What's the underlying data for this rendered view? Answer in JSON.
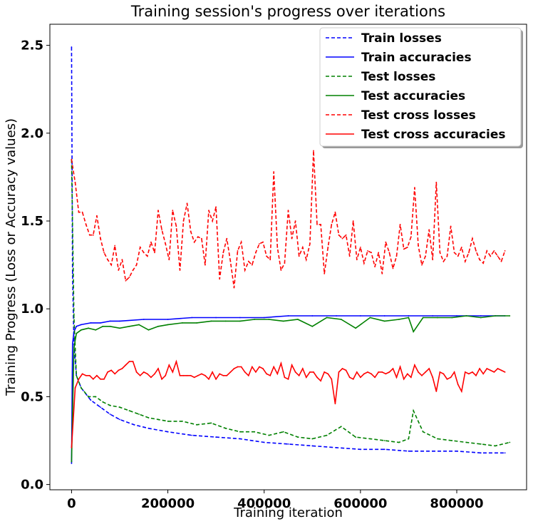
{
  "chart_data": {
    "type": "line",
    "title": "Training session's progress over iterations",
    "xlabel": "Training iteration",
    "ylabel": "Training Progress (Loss or Accuracy values)",
    "xlim": [
      -45000,
      945000
    ],
    "ylim": [
      -0.03,
      2.62
    ],
    "x_ticks": [
      0,
      200000,
      400000,
      600000,
      800000
    ],
    "y_ticks": [
      0.0,
      0.5,
      1.0,
      1.5,
      2.0,
      2.5
    ],
    "x_tick_labels": [
      "0",
      "200000",
      "400000",
      "600000",
      "800000"
    ],
    "y_tick_labels": [
      "0.0",
      "0.5",
      "1.0",
      "1.5",
      "2.0",
      "2.5"
    ],
    "grid": false,
    "legend_position": "top-right",
    "series": [
      {
        "name": "Train losses",
        "color": "#0000ff",
        "style": "dashed",
        "x": [
          0,
          2000,
          5000,
          10000,
          20000,
          40000,
          60000,
          80000,
          100000,
          130000,
          160000,
          200000,
          250000,
          300000,
          350000,
          400000,
          450000,
          500000,
          550000,
          600000,
          650000,
          700000,
          750000,
          800000,
          850000,
          900000
        ],
        "values": [
          2.49,
          1.2,
          0.8,
          0.62,
          0.55,
          0.48,
          0.44,
          0.4,
          0.37,
          0.34,
          0.32,
          0.3,
          0.28,
          0.27,
          0.26,
          0.24,
          0.23,
          0.22,
          0.21,
          0.2,
          0.2,
          0.19,
          0.19,
          0.19,
          0.18,
          0.18
        ]
      },
      {
        "name": "Train accuracies",
        "color": "#0000ff",
        "style": "solid",
        "x": [
          0,
          2000,
          5000,
          10000,
          20000,
          40000,
          60000,
          80000,
          100000,
          150000,
          200000,
          250000,
          300000,
          350000,
          400000,
          450000,
          500000,
          550000,
          600000,
          650000,
          700000,
          750000,
          800000,
          850000,
          900000
        ],
        "values": [
          0.12,
          0.8,
          0.87,
          0.9,
          0.91,
          0.92,
          0.92,
          0.93,
          0.93,
          0.94,
          0.94,
          0.95,
          0.95,
          0.95,
          0.95,
          0.96,
          0.96,
          0.96,
          0.96,
          0.96,
          0.96,
          0.96,
          0.96,
          0.96,
          0.96
        ]
      },
      {
        "name": "Test losses",
        "color": "#008000",
        "style": "dashed",
        "x": [
          0,
          5000,
          10000,
          20000,
          35000,
          50000,
          65000,
          80000,
          100000,
          120000,
          140000,
          160000,
          180000,
          200000,
          230000,
          260000,
          290000,
          320000,
          350000,
          380000,
          410000,
          440000,
          470000,
          500000,
          530000,
          560000,
          590000,
          620000,
          650000,
          680000,
          700000,
          710000,
          730000,
          760000,
          790000,
          820000,
          850000,
          880000,
          910000
        ],
        "values": [
          1.85,
          0.95,
          0.62,
          0.55,
          0.5,
          0.5,
          0.47,
          0.45,
          0.44,
          0.42,
          0.4,
          0.38,
          0.37,
          0.36,
          0.36,
          0.34,
          0.35,
          0.32,
          0.3,
          0.3,
          0.28,
          0.3,
          0.27,
          0.26,
          0.28,
          0.33,
          0.27,
          0.26,
          0.25,
          0.24,
          0.26,
          0.42,
          0.3,
          0.26,
          0.25,
          0.24,
          0.23,
          0.22,
          0.24
        ]
      },
      {
        "name": "Test accuracies",
        "color": "#008000",
        "style": "solid",
        "x": [
          0,
          5000,
          10000,
          20000,
          35000,
          50000,
          65000,
          80000,
          100000,
          120000,
          140000,
          160000,
          180000,
          200000,
          230000,
          260000,
          290000,
          320000,
          350000,
          380000,
          410000,
          440000,
          470000,
          500000,
          530000,
          560000,
          590000,
          620000,
          650000,
          680000,
          700000,
          710000,
          730000,
          760000,
          790000,
          820000,
          850000,
          880000,
          910000
        ],
        "values": [
          0.13,
          0.78,
          0.86,
          0.88,
          0.89,
          0.88,
          0.9,
          0.9,
          0.89,
          0.9,
          0.91,
          0.88,
          0.9,
          0.91,
          0.92,
          0.92,
          0.93,
          0.93,
          0.93,
          0.94,
          0.94,
          0.93,
          0.94,
          0.9,
          0.95,
          0.94,
          0.89,
          0.95,
          0.93,
          0.94,
          0.95,
          0.87,
          0.95,
          0.95,
          0.95,
          0.96,
          0.95,
          0.96,
          0.96
        ]
      },
      {
        "name": "Test cross losses",
        "color": "#ff0000",
        "style": "dashed",
        "x": [
          0,
          7500,
          15000,
          22500,
          30000,
          37500,
          45000,
          52500,
          60000,
          67500,
          75000,
          82500,
          90000,
          97500,
          105000,
          112500,
          120000,
          127500,
          135000,
          142500,
          150000,
          157500,
          165000,
          172500,
          180000,
          187500,
          195000,
          202500,
          210000,
          217500,
          225000,
          232500,
          240000,
          247500,
          255000,
          262500,
          270000,
          277500,
          285000,
          292500,
          300000,
          307500,
          315000,
          322500,
          330000,
          337500,
          345000,
          352500,
          360000,
          367500,
          375000,
          382500,
          390000,
          397500,
          405000,
          412500,
          420000,
          427500,
          435000,
          442500,
          450000,
          457500,
          465000,
          472500,
          480000,
          487500,
          495000,
          502500,
          510000,
          517500,
          525000,
          532500,
          540000,
          547500,
          555000,
          562500,
          570000,
          577500,
          585000,
          592500,
          600000,
          607500,
          615000,
          622500,
          630000,
          637500,
          645000,
          652500,
          660000,
          667500,
          675000,
          682500,
          690000,
          697500,
          705000,
          712500,
          720000,
          727500,
          735000,
          742500,
          750000,
          757500,
          765000,
          772500,
          780000,
          787500,
          795000,
          802500,
          810000,
          817500,
          825000,
          832500,
          840000,
          847500,
          855000,
          862500,
          870000,
          877500,
          885000,
          892500,
          900000
        ],
        "values": [
          1.85,
          1.72,
          1.55,
          1.55,
          1.48,
          1.42,
          1.42,
          1.53,
          1.4,
          1.32,
          1.28,
          1.25,
          1.36,
          1.22,
          1.28,
          1.16,
          1.18,
          1.22,
          1.25,
          1.35,
          1.32,
          1.3,
          1.38,
          1.32,
          1.56,
          1.45,
          1.37,
          1.28,
          1.56,
          1.47,
          1.22,
          1.5,
          1.6,
          1.44,
          1.38,
          1.41,
          1.4,
          1.25,
          1.56,
          1.5,
          1.58,
          1.17,
          1.32,
          1.4,
          1.27,
          1.12,
          1.33,
          1.38,
          1.22,
          1.27,
          1.25,
          1.32,
          1.37,
          1.38,
          1.3,
          1.28,
          1.78,
          1.35,
          1.22,
          1.26,
          1.56,
          1.4,
          1.5,
          1.3,
          1.35,
          1.28,
          1.37,
          1.9,
          1.48,
          1.48,
          1.2,
          1.35,
          1.48,
          1.55,
          1.42,
          1.4,
          1.42,
          1.3,
          1.5,
          1.28,
          1.35,
          1.26,
          1.33,
          1.32,
          1.24,
          1.32,
          1.2,
          1.38,
          1.32,
          1.23,
          1.3,
          1.48,
          1.34,
          1.35,
          1.41,
          1.69,
          1.36,
          1.25,
          1.3,
          1.45,
          1.28,
          1.72,
          1.32,
          1.27,
          1.3,
          1.47,
          1.32,
          1.3,
          1.35,
          1.27,
          1.32,
          1.4,
          1.33,
          1.28,
          1.26,
          1.33,
          1.3,
          1.33,
          1.3,
          1.27,
          1.33
        ]
      },
      {
        "name": "Test cross accuracies",
        "color": "#ff0000",
        "style": "solid",
        "x": [
          0,
          7500,
          15000,
          22500,
          30000,
          37500,
          45000,
          52500,
          60000,
          67500,
          75000,
          82500,
          90000,
          97500,
          105000,
          112500,
          120000,
          127500,
          135000,
          142500,
          150000,
          157500,
          165000,
          172500,
          180000,
          187500,
          195000,
          202500,
          210000,
          217500,
          225000,
          232500,
          240000,
          247500,
          255000,
          262500,
          270000,
          277500,
          285000,
          292500,
          300000,
          307500,
          315000,
          322500,
          330000,
          337500,
          345000,
          352500,
          360000,
          367500,
          375000,
          382500,
          390000,
          397500,
          405000,
          412500,
          420000,
          427500,
          435000,
          442500,
          450000,
          457500,
          465000,
          472500,
          480000,
          487500,
          495000,
          502500,
          510000,
          517500,
          525000,
          532500,
          540000,
          547500,
          555000,
          562500,
          570000,
          577500,
          585000,
          592500,
          600000,
          607500,
          615000,
          622500,
          630000,
          637500,
          645000,
          652500,
          660000,
          667500,
          675000,
          682500,
          690000,
          697500,
          705000,
          712500,
          720000,
          727500,
          735000,
          742500,
          750000,
          757500,
          765000,
          772500,
          780000,
          787500,
          795000,
          802500,
          810000,
          817500,
          825000,
          832500,
          840000,
          847500,
          855000,
          862500,
          870000,
          877500,
          885000,
          892500,
          900000
        ],
        "values": [
          0.21,
          0.55,
          0.6,
          0.63,
          0.62,
          0.62,
          0.6,
          0.62,
          0.6,
          0.6,
          0.64,
          0.65,
          0.63,
          0.65,
          0.66,
          0.68,
          0.7,
          0.7,
          0.64,
          0.62,
          0.64,
          0.63,
          0.61,
          0.63,
          0.66,
          0.6,
          0.62,
          0.68,
          0.64,
          0.7,
          0.62,
          0.62,
          0.62,
          0.62,
          0.61,
          0.62,
          0.63,
          0.62,
          0.6,
          0.64,
          0.6,
          0.63,
          0.62,
          0.62,
          0.64,
          0.66,
          0.67,
          0.67,
          0.64,
          0.62,
          0.67,
          0.64,
          0.67,
          0.66,
          0.63,
          0.62,
          0.67,
          0.63,
          0.69,
          0.61,
          0.6,
          0.68,
          0.64,
          0.62,
          0.66,
          0.61,
          0.64,
          0.64,
          0.61,
          0.59,
          0.64,
          0.63,
          0.6,
          0.46,
          0.64,
          0.66,
          0.65,
          0.61,
          0.6,
          0.64,
          0.61,
          0.63,
          0.64,
          0.63,
          0.61,
          0.64,
          0.64,
          0.63,
          0.64,
          0.66,
          0.61,
          0.67,
          0.6,
          0.63,
          0.61,
          0.68,
          0.64,
          0.62,
          0.64,
          0.66,
          0.61,
          0.53,
          0.64,
          0.63,
          0.6,
          0.61,
          0.64,
          0.57,
          0.53,
          0.64,
          0.63,
          0.64,
          0.62,
          0.66,
          0.63,
          0.66,
          0.65,
          0.64,
          0.66,
          0.65,
          0.64
        ]
      }
    ]
  }
}
